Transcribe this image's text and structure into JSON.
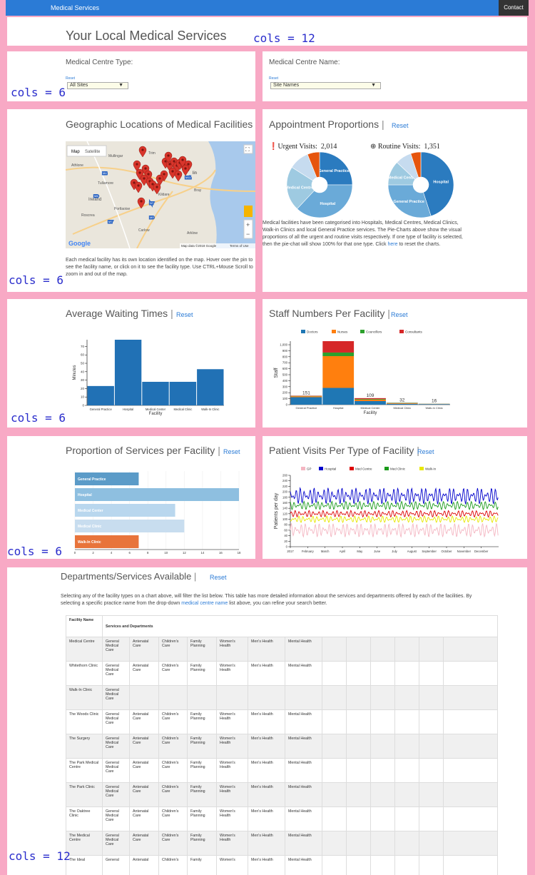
{
  "nav": {
    "brand": "Medical Services",
    "contact": "Contact"
  },
  "page_title": "Your Local Medical Services",
  "cols_labels": {
    "c12": "cols = 12",
    "c6": "cols = 6"
  },
  "filters": {
    "type_label": "Medical Centre Type:",
    "type_reset": "Reset",
    "type_value": "All Sites",
    "name_label": "Medical Centre Name:",
    "name_reset": "Reset",
    "name_value": "Site Names"
  },
  "map_panel": {
    "title": "Geographic Locations of Medical Facilities",
    "map_btn": "Map",
    "satellite_btn": "Satellite",
    "places": [
      "Mullingar",
      "Trim",
      "Athlone",
      "Tullamore",
      "Ireland",
      "Portlaoise",
      "Roscrea",
      "Carlow",
      "Arklow",
      "Bray",
      "lin",
      "Kildare"
    ],
    "road_labels": [
      "M4",
      "M6",
      "M7",
      "M9",
      "M11",
      "N7"
    ],
    "attribution": "Map data ©2018 Google",
    "terms": "Terms of Use",
    "google": "Google",
    "zoom_in": "+",
    "zoom_out": "−",
    "fullscreen": "⛶",
    "description": "Each medical facility has its own location identified on the map. Hover over the pin to see the facility name, or click on it to see the facility type. Use CTRL+Mouse Scroll to zoom in and out of the map."
  },
  "appointments": {
    "title": "Appointment Proportions",
    "reset": "Reset",
    "urgent_label": "Urgent Visits:",
    "urgent_value": "2,014",
    "routine_label": "Routine Visits:",
    "routine_value": "1,351",
    "description_1": "Medical facilities have been categorised into Hospitals, Medical Centres, Medical Clinics, Walk-in Clinics and local General Practice services. The Pie-Charts above show the visual proportions of all the urgent and routine visits respectively. If one type of facility is selected, then the pie-chat will show 100% for that one type. Click ",
    "description_link": "here",
    "description_2": " to reset the charts."
  },
  "waiting": {
    "title": "Average Waiting Times",
    "reset": "Reset"
  },
  "staff": {
    "title": "Staff Numbers Per Facility",
    "reset": "Reset"
  },
  "services": {
    "title": "Proportion of Services per Facility",
    "reset": "Reset"
  },
  "visits": {
    "title": "Patient Visits Per Type of Facility",
    "reset": "Reset"
  },
  "chart_data": [
    {
      "id": "urgent_pie",
      "type": "pie",
      "title": "Urgent Visits",
      "slices": [
        {
          "label": "General Practice",
          "value": 25,
          "color": "#2b7bbf"
        },
        {
          "label": "Hospital",
          "value": 37,
          "color": "#6aaad8"
        },
        {
          "label": "Medical Centre",
          "value": 22,
          "color": "#9ecae1"
        },
        {
          "label": "Medical Clinic",
          "value": 10,
          "color": "#c6dbef"
        },
        {
          "label": "Walk-In Clinic",
          "value": 6,
          "color": "#e6550d"
        }
      ]
    },
    {
      "id": "routine_pie",
      "type": "pie",
      "title": "Routine Visits",
      "slices": [
        {
          "label": "Hospital",
          "value": 45,
          "color": "#2b7bbf"
        },
        {
          "label": "General Practice",
          "value": 30,
          "color": "#6aaad8"
        },
        {
          "label": "Medical Centre",
          "value": 12,
          "color": "#9ecae1"
        },
        {
          "label": "Medical Clinic",
          "value": 8,
          "color": "#c6dbef"
        },
        {
          "label": "Walk-In Clinic",
          "value": 5,
          "color": "#e6550d"
        }
      ]
    },
    {
      "id": "waiting_bar",
      "type": "bar",
      "categories": [
        "General Practice",
        "Hospital",
        "Medical Center",
        "Medical Clinic",
        "Walk-In Clinic"
      ],
      "values": [
        23,
        78,
        28,
        28,
        43
      ],
      "xlabel": "Facility",
      "ylabel": "Minutes",
      "ylim": [
        0,
        78
      ],
      "yticks": [
        0,
        10,
        20,
        30,
        40,
        50,
        60,
        70
      ],
      "color": "#2171b5"
    },
    {
      "id": "staff_bar",
      "type": "bar",
      "stacked": true,
      "categories": [
        "General Practice",
        "Hospital",
        "Medical Center",
        "Medical Clinic",
        "Walk-In Clinic"
      ],
      "series": [
        {
          "name": "Doctors",
          "values": [
            125,
            280,
            60,
            15,
            10
          ],
          "color": "#1f77b4"
        },
        {
          "name": "Nurses",
          "values": [
            16,
            530,
            24,
            10,
            3
          ],
          "color": "#ff7f0e"
        },
        {
          "name": "Councillors",
          "values": [
            5,
            60,
            10,
            5,
            2
          ],
          "color": "#2ca02c"
        },
        {
          "name": "Consultants",
          "values": [
            5,
            190,
            15,
            2,
            1
          ],
          "color": "#d62728"
        }
      ],
      "totals": [
        "151",
        "",
        "109",
        "32",
        "16"
      ],
      "xlabel": "Facility",
      "ylabel": "Staff",
      "ylim": [
        0,
        1060
      ],
      "yticks": [
        0,
        100,
        200,
        300,
        400,
        500,
        600,
        700,
        800,
        900,
        1000
      ]
    },
    {
      "id": "services_hbar",
      "type": "bar",
      "orientation": "horizontal",
      "categories": [
        "General Practice",
        "Hospital",
        "Medical Center",
        "Medical Clinic",
        "Walk-In Clinic"
      ],
      "values": [
        7,
        18,
        11,
        12,
        7
      ],
      "colors": [
        "#5b9bc8",
        "#8ebfe0",
        "#b9d7ee",
        "#c8ddef",
        "#e8743b"
      ],
      "xlim": [
        0,
        18
      ],
      "xticks": [
        0,
        2,
        4,
        6,
        8,
        10,
        12,
        14,
        16,
        18
      ]
    },
    {
      "id": "visits_line",
      "type": "line",
      "ylabel": "Patients per day",
      "x_ticks": [
        "2017",
        "February",
        "March",
        "April",
        "May",
        "June",
        "July",
        "August",
        "September",
        "October",
        "November",
        "December"
      ],
      "ylim": [
        0,
        260
      ],
      "yticks": [
        0,
        20,
        40,
        60,
        80,
        100,
        120,
        140,
        160,
        180,
        200,
        220,
        240,
        260
      ],
      "series": [
        {
          "name": "GP",
          "color": "#f4b6c2",
          "mean": 60,
          "amp": 25
        },
        {
          "name": "Hospital",
          "color": "#0000cc",
          "mean": 185,
          "amp": 30
        },
        {
          "name": "Med Centre",
          "color": "#dd0000",
          "mean": 120,
          "amp": 12
        },
        {
          "name": "Med Clinic",
          "color": "#1a9a1a",
          "mean": 150,
          "amp": 15
        },
        {
          "name": "Walk-In",
          "color": "#e8e800",
          "mean": 100,
          "amp": 12
        }
      ]
    }
  ],
  "departments": {
    "title": "Departments/Services Available",
    "reset": "Reset",
    "intro_1": "Selecting any of the facility types on a chart above, will filter the list below. This table has more detailed information about the services and departments offered by each of the facilities. By selecting a specific practice name from the drop-down ",
    "intro_link": "medical centre name",
    "intro_2": " list above, you can refine your search better.",
    "headers": [
      "Facility Name",
      "Services and Departments"
    ],
    "rows": [
      {
        "name": "Medical Centre",
        "services": [
          "General Medical Care",
          "Antenatal Care",
          "Children's Care",
          "Family Planning",
          "Women's Health",
          "Men's Health",
          "Mental Health"
        ]
      },
      {
        "name": "Whitethorn Clinic",
        "services": [
          "General Medical Care",
          "Antenatal Care",
          "Children's Care",
          "Family Planning",
          "Women's Health",
          "Men's Health",
          "Mental Health"
        ]
      },
      {
        "name": "Walk-In Clinic",
        "services": [
          "General Medical Care"
        ]
      },
      {
        "name": "The Woods Clinic",
        "services": [
          "General Medical Care",
          "Antenatal Care",
          "Children's Care",
          "Family Planning",
          "Women's Health",
          "Men's Health",
          "Mental Health"
        ]
      },
      {
        "name": "The Surgery",
        "services": [
          "General Medical Care",
          "Antenatal Care",
          "Children's Care",
          "Family Planning",
          "Women's Health",
          "Men's Health",
          "Mental Health"
        ]
      },
      {
        "name": "The Park Medical Centre",
        "services": [
          "General Medical Care",
          "Antenatal Care",
          "Children's Care",
          "Family Planning",
          "Women's Health",
          "Men's Health",
          "Mental Health"
        ]
      },
      {
        "name": "The Park Clinic",
        "services": [
          "General Medical Care",
          "Antenatal Care",
          "Children's Care",
          "Family Planning",
          "Women's Health",
          "Men's Health",
          "Mental Health"
        ]
      },
      {
        "name": "The Oaktree Clinic",
        "services": [
          "General Medical Care",
          "Antenatal Care",
          "Children's Care",
          "Family Planning",
          "Women's Health",
          "Men's Health",
          "Mental Health"
        ]
      },
      {
        "name": "The Medical Centre",
        "services": [
          "General Medical Care",
          "Antenatal Care",
          "Children's Care",
          "Family Planning",
          "Women's Health",
          "Men's Health",
          "Mental Health"
        ]
      },
      {
        "name": "The Ideal",
        "services": [
          "General",
          "Antenatal",
          "Children's",
          "Family",
          "Women's",
          "Men's Health",
          "Mental Health"
        ]
      }
    ]
  }
}
